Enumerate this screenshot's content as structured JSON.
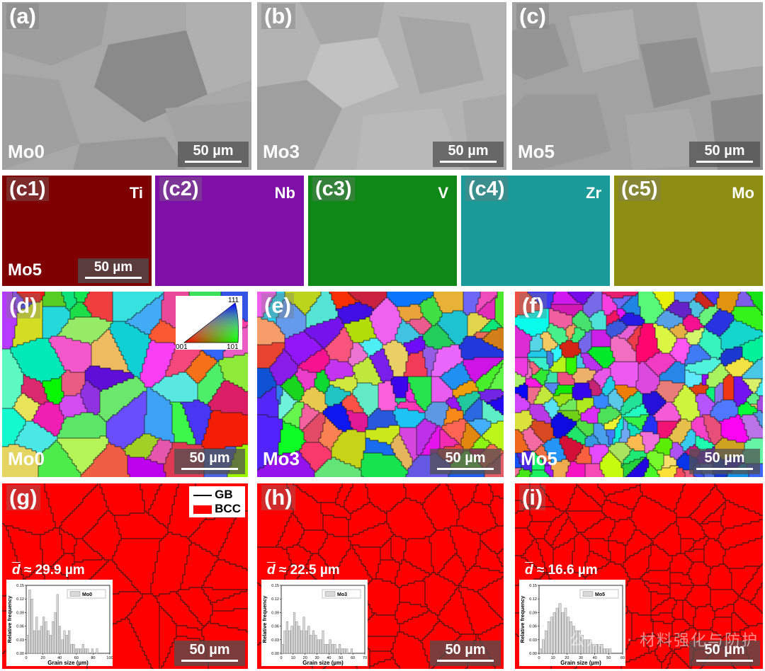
{
  "row1": [
    {
      "tag": "(a)",
      "sample": "Mo0",
      "scale": "50 µm"
    },
    {
      "tag": "(b)",
      "sample": "Mo3",
      "scale": "50 µm"
    },
    {
      "tag": "(c)",
      "sample": "Mo5",
      "scale": "50 µm"
    }
  ],
  "row2": [
    {
      "tag": "(c1)",
      "element": "Ti",
      "color": "#7e0000"
    },
    {
      "tag": "(c2)",
      "element": "Nb",
      "color": "#7e10a8"
    },
    {
      "tag": "(c3)",
      "element": "V",
      "color": "#108818"
    },
    {
      "tag": "(c4)",
      "element": "Zr",
      "color": "#1a9a98"
    },
    {
      "tag": "(c5)",
      "element": "Mo",
      "color": "#8e8e12"
    }
  ],
  "row2_sample": "Mo5",
  "row2_scale": "50 µm",
  "row3": [
    {
      "tag": "(d)",
      "sample": "Mo0",
      "scale": "50 µm"
    },
    {
      "tag": "(e)",
      "sample": "Mo3",
      "scale": "50 µm"
    },
    {
      "tag": "(f)",
      "sample": "Mo5",
      "scale": "50 µm"
    }
  ],
  "ipf_labels": {
    "top": "111",
    "left": "001",
    "right": "101"
  },
  "row4": [
    {
      "tag": "(g)",
      "d_prefix": "d",
      "d_value": " ≈ 29.9 µm",
      "scale": "50 µm",
      "legend": "Mo0",
      "xmax": "100",
      "xticks": [
        "0",
        "20",
        "40",
        "60",
        "80",
        "100"
      ],
      "values": [
        0.04,
        0.14,
        0.12,
        0.05,
        0.08,
        0.05,
        0.06,
        0.08,
        0.07,
        0.05,
        0.04,
        0.07,
        0.09,
        0.13,
        0.06,
        0.03,
        0.05,
        0.04,
        0.05,
        0.02,
        0.02,
        0.01,
        0.01,
        0.01,
        0.02,
        0.01,
        0.01,
        0,
        0.01,
        0,
        0.01,
        0,
        0,
        0,
        0,
        0
      ]
    },
    {
      "tag": "(h)",
      "d_prefix": "d",
      "d_value": " ≈ 22.5 µm",
      "scale": "50 µm",
      "legend": "Mo3",
      "xmax": "70",
      "xticks": [
        "0",
        "10",
        "20",
        "30",
        "40",
        "50",
        "60",
        "70"
      ],
      "values": [
        0.02,
        0.05,
        0.07,
        0.05,
        0.06,
        0.09,
        0.07,
        0.06,
        0.05,
        0.08,
        0.05,
        0.06,
        0.04,
        0.05,
        0.04,
        0.03,
        0.03,
        0.05,
        0.02,
        0.02,
        0.03,
        0.02,
        0.02,
        0.01,
        0.02,
        0.01,
        0.01,
        0.01,
        0,
        0.01,
        0,
        0,
        0,
        0,
        0
      ]
    },
    {
      "tag": "(i)",
      "d_prefix": "d",
      "d_value": " ≈ 16.6 µm",
      "scale": "50 µm",
      "legend": "Mo5",
      "xmax": "60",
      "xticks": [
        "0",
        "10",
        "20",
        "30",
        "40",
        "50",
        "60"
      ],
      "values": [
        0.01,
        0.03,
        0.05,
        0.07,
        0.08,
        0.09,
        0.1,
        0.11,
        0.09,
        0.1,
        0.08,
        0.07,
        0.06,
        0.05,
        0.05,
        0.04,
        0.03,
        0.03,
        0.03,
        0.02,
        0.02,
        0.02,
        0.02,
        0.01,
        0.01,
        0.01,
        0,
        0,
        0,
        0
      ]
    }
  ],
  "phase_legend": {
    "gb": "GB",
    "bcc": "BCC"
  },
  "inset_axes": {
    "ylabel": "Relative frequency",
    "xlabel": "Grain size (µm)",
    "yticks": [
      "0.00",
      "0.03",
      "0.06",
      "0.09",
      "0.12",
      "0.15"
    ]
  },
  "watermark": "公众号 · 材料强化与防护"
}
